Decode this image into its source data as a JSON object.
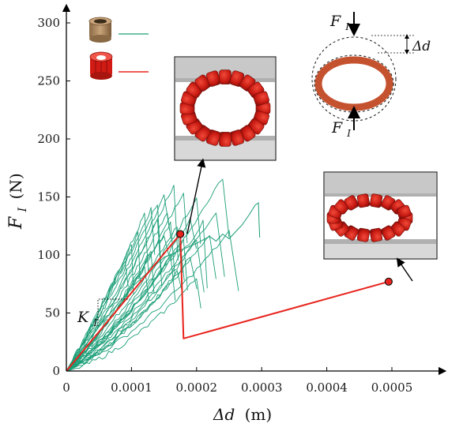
{
  "chart_data": {
    "type": "line",
    "xlabel_var": "Δd",
    "xlabel_unit": "(m)",
    "ylabel_var": "F",
    "ylabel_sub": "I",
    "ylabel_unit": "(N)",
    "xlim": [
      0,
      0.00052
    ],
    "ylim": [
      0,
      310
    ],
    "x_ticks": [
      0,
      0.0001,
      0.0002,
      0.0003,
      0.0004,
      0.0005
    ],
    "x_tick_labels": [
      "0",
      "0.0001",
      "0.0002",
      "0.0003",
      "0.0004",
      "0.0005"
    ],
    "y_ticks": [
      0,
      50,
      100,
      150,
      200,
      250,
      300
    ],
    "y_tick_labels": [
      "0",
      "50",
      "100",
      "150",
      "200",
      "250",
      "300"
    ],
    "grid": false,
    "legend": "top-left",
    "series": [
      {
        "kind": "experiment",
        "color": "#1a9e77",
        "curves": [
          {
            "peak_x": 0.000165,
            "peak_y": 160,
            "curv": 0.3
          },
          {
            "peak_x": 0.00015,
            "peak_y": 150,
            "curv": 0.25
          },
          {
            "peak_x": 0.00018,
            "peak_y": 155,
            "curv": 0.4
          },
          {
            "peak_x": 0.0002,
            "peak_y": 150,
            "curv": 0.45
          },
          {
            "peak_x": 0.00024,
            "peak_y": 167,
            "curv": 0.5
          },
          {
            "peak_x": 0.00013,
            "peak_y": 140,
            "curv": 0.2
          },
          {
            "peak_x": 0.00012,
            "peak_y": 135,
            "curv": 0.15
          },
          {
            "peak_x": 0.00014,
            "peak_y": 130,
            "curv": 0.25
          },
          {
            "peak_x": 0.00016,
            "peak_y": 128,
            "curv": 0.3
          },
          {
            "peak_x": 0.00017,
            "peak_y": 125,
            "curv": 0.35
          },
          {
            "peak_x": 0.00019,
            "peak_y": 130,
            "curv": 0.4
          },
          {
            "peak_x": 0.00021,
            "peak_y": 128,
            "curv": 0.45
          },
          {
            "peak_x": 0.00011,
            "peak_y": 118,
            "curv": 0.15
          },
          {
            "peak_x": 0.0001,
            "peak_y": 110,
            "curv": 0.1
          },
          {
            "peak_x": 0.00015,
            "peak_y": 118,
            "curv": 0.3
          },
          {
            "peak_x": 0.00018,
            "peak_y": 115,
            "curv": 0.4
          },
          {
            "peak_x": 0.0002,
            "peak_y": 112,
            "curv": 0.5
          },
          {
            "peak_x": 0.00022,
            "peak_y": 118,
            "curv": 0.55
          },
          {
            "peak_x": 0.00013,
            "peak_y": 105,
            "curv": 0.3
          },
          {
            "peak_x": 0.00016,
            "peak_y": 100,
            "curv": 0.45
          },
          {
            "peak_x": 0.00019,
            "peak_y": 98,
            "curv": 0.55
          },
          {
            "peak_x": 0.00017,
            "peak_y": 85,
            "curv": 0.6
          },
          {
            "peak_x": 0.0002,
            "peak_y": 80,
            "curv": 0.7
          },
          {
            "peak_x": 9e-05,
            "peak_y": 95,
            "curv": 0.1
          },
          {
            "peak_x": 0.00014,
            "peak_y": 145,
            "curv": 0.2
          },
          {
            "peak_x": 0.00023,
            "peak_y": 138,
            "curv": 0.5
          },
          {
            "peak_x": 0.00025,
            "peak_y": 120,
            "curv": 0.55
          },
          {
            "peak_x": 0.00012,
            "peak_y": 90,
            "curv": 0.35
          },
          {
            "peak_x": 0.000175,
            "peak_y": 108,
            "curv": 0.4
          },
          {
            "peak_x": 0.000155,
            "peak_y": 137,
            "curv": 0.28
          }
        ],
        "long_curve": {
          "x": [
            0,
            5e-05,
            0.0001,
            0.00015,
            0.0002,
            0.00022,
            0.00023,
            0.00024,
            0.00025,
            0.00026,
            0.00027,
            0.00028,
            0.00029,
            0.000295,
            0.000296,
            0.000297
          ],
          "y": [
            0,
            38,
            72,
            98,
            110,
            116,
            112,
            118,
            114,
            120,
            126,
            134,
            143,
            145,
            128,
            115
          ]
        }
      },
      {
        "kind": "model",
        "color": "#e8231c",
        "x": [
          0,
          0.000175,
          0.00018,
          0.000495
        ],
        "y": [
          0,
          118,
          28,
          77
        ]
      }
    ],
    "markers": [
      {
        "x": 0.000175,
        "y": 118
      },
      {
        "x": 0.000495,
        "y": 77
      }
    ],
    "annotations": {
      "slope_var": "K",
      "slope_sub": "I",
      "force_var": "F",
      "force_sub": "I",
      "disp_label": "Δd"
    }
  }
}
